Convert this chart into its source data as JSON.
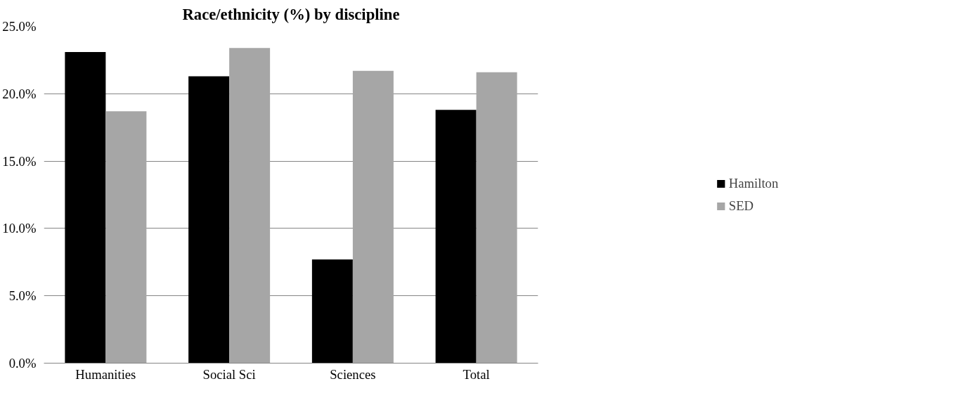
{
  "chart_data": {
    "type": "bar",
    "title": "Race/ethnicity (%) by discipline",
    "categories": [
      "Humanities",
      "Social Sci",
      "Sciences",
      "Total"
    ],
    "series": [
      {
        "name": "Hamilton",
        "color": "#000000",
        "values": [
          23.1,
          21.3,
          7.7,
          18.8
        ]
      },
      {
        "name": "SED",
        "color": "#a6a6a6",
        "values": [
          18.7,
          23.4,
          21.7,
          21.6
        ]
      }
    ],
    "ylim": [
      0,
      25
    ],
    "yticks": [
      {
        "value": 0,
        "label": "0.0%"
      },
      {
        "value": 5,
        "label": "5.0%"
      },
      {
        "value": 10,
        "label": "10.0%"
      },
      {
        "value": 15,
        "label": "15.0%"
      },
      {
        "value": 20,
        "label": "20.0%"
      },
      {
        "value": 25,
        "label": "25.0%"
      }
    ],
    "grid": "y",
    "legend": "right"
  }
}
